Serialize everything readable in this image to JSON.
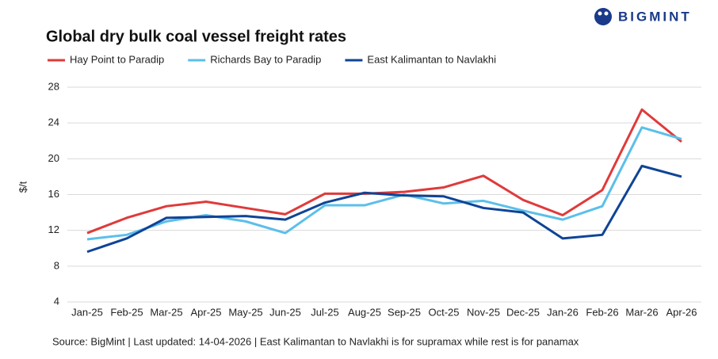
{
  "brand": "BIGMINT",
  "chart_data": {
    "type": "line",
    "title": "Global dry bulk coal vessel freight rates",
    "y_label": "$/t",
    "source": "Source: BigMint | Last updated: 14-04-2026 | East Kalimantan to Navlakhi is for supramax while rest is for panamax",
    "categories": [
      "Jan-25",
      "Feb-25",
      "Mar-25",
      "Apr-25",
      "May-25",
      "Jun-25",
      "Jul-25",
      "Aug-25",
      "Sep-25",
      "Oct-25",
      "Nov-25",
      "Dec-25",
      "Jan-26",
      "Feb-26",
      "Mar-26",
      "Apr-26"
    ],
    "series": [
      {
        "name": "Hay Point to Paradip",
        "color": "#e03a3a",
        "values": [
          11.7,
          13.4,
          14.7,
          15.2,
          14.5,
          13.8,
          16.1,
          16.1,
          16.3,
          16.8,
          18.1,
          15.4,
          13.7,
          16.5,
          25.5,
          21.9
        ]
      },
      {
        "name": "Richards Bay to Paradip",
        "color": "#5bbfea",
        "values": [
          11.0,
          11.5,
          13.0,
          13.7,
          13.0,
          11.7,
          14.8,
          14.8,
          16.0,
          15.0,
          15.3,
          14.2,
          13.2,
          14.7,
          23.5,
          22.2
        ]
      },
      {
        "name": "East Kalimantan to Navlakhi",
        "color": "#0f4496",
        "values": [
          9.6,
          11.1,
          13.4,
          13.5,
          13.6,
          13.2,
          15.1,
          16.2,
          15.9,
          15.8,
          14.5,
          14.0,
          11.1,
          11.5,
          19.2,
          18.0
        ]
      }
    ],
    "ylim": [
      4,
      28
    ],
    "yticks": [
      4,
      8,
      12,
      16,
      20,
      24,
      28
    ],
    "grid": true
  }
}
